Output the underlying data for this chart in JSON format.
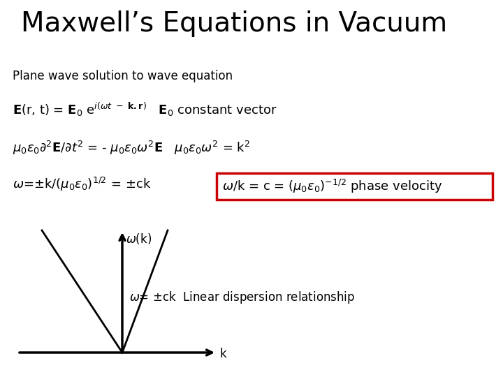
{
  "title": "Maxwell’s Equations in Vacuum",
  "title_fontsize": 28,
  "title_fontweight": "normal",
  "bg_color": "#ffffff",
  "text_color": "#000000",
  "subtitle": "Plane wave solution to wave equation",
  "subtitle_fontsize": 12,
  "box_color": "#cc0000",
  "text_fontsize": 12,
  "eq_fontsize": 13,
  "disp_fontsize": 12
}
